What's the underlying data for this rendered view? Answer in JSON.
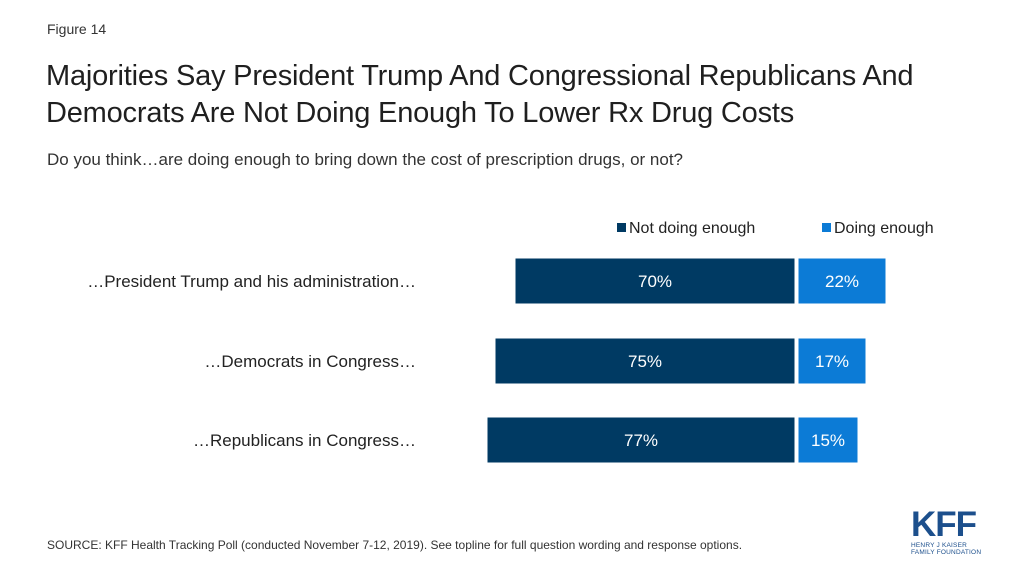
{
  "figure_label": "Figure 14",
  "colors": {
    "not_enough": "#003a63",
    "enough": "#0c7bd6"
  },
  "chart_data": {
    "type": "bar",
    "orientation": "horizontal",
    "stacked": true,
    "diverging": true,
    "title": "Majorities Say President Trump And Congressional Republicans And Democrats Are Not Doing Enough To Lower Rx Drug Costs",
    "subtitle": "Do you think…are doing enough to bring down the cost of prescription drugs, or not?",
    "categories": [
      "…President Trump and his administration…",
      "…Democrats in Congress…",
      "…Republicans in Congress…"
    ],
    "series": [
      {
        "name": "Not doing enough",
        "values": [
          70,
          75,
          77
        ],
        "labels": [
          "70%",
          "75%",
          "77%"
        ]
      },
      {
        "name": "Doing enough",
        "values": [
          22,
          17,
          15
        ],
        "labels": [
          "22%",
          "17%",
          "15%"
        ]
      }
    ],
    "legend_position": "top-right"
  },
  "source": "SOURCE: KFF Health Tracking Poll (conducted November 7-12, 2019). See topline for full question wording and response options.",
  "logo": {
    "letters": "KFF",
    "line1": "HENRY J KAISER",
    "line2": "FAMILY FOUNDATION"
  }
}
